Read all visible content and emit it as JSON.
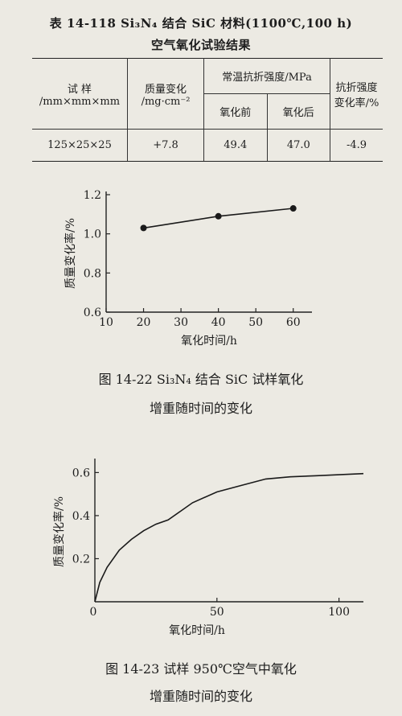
{
  "table": {
    "title_line1": "表 14-118   Si₃N₄ 结合 SiC 材料(1100℃,100 h)",
    "title_line2": "空气氧化试验结果",
    "headers": {
      "sample": "试 样",
      "sample_unit": "/mm×mm×mm",
      "mass": "质量变化",
      "mass_unit": "/mg·cm⁻²",
      "strength": "常温抗折强度/MPa",
      "before": "氧化前",
      "after": "氧化后",
      "rate": "抗折强度",
      "rate_unit": "变化率/%"
    },
    "row": {
      "sample": "125×25×25",
      "mass": "+7.8",
      "before": "49.4",
      "after": "47.0",
      "rate": "-4.9"
    }
  },
  "fig1": {
    "caption_line1": "图 14-22   Si₃N₄ 结合 SiC 试样氧化",
    "caption_line2": "增重随时间的变化"
  },
  "fig2": {
    "caption_line1": "图 14-23   试样 950℃空气中氧化",
    "caption_line2": "增重随时间的变化"
  },
  "chart_data": [
    {
      "type": "line",
      "xlabel": "氧化时间/h",
      "ylabel": "质量变化率/%",
      "xlim": [
        10,
        65
      ],
      "ylim": [
        0.6,
        1.2
      ],
      "xticks": [
        10,
        20,
        30,
        40,
        50,
        60
      ],
      "yticks": [
        0.6,
        0.8,
        1.0,
        1.2
      ],
      "x": [
        20,
        40,
        60
      ],
      "y": [
        1.03,
        1.09,
        1.13
      ],
      "markers": true
    },
    {
      "type": "line",
      "xlabel": "氧化时间/h",
      "ylabel": "质量变化率/%",
      "xlim": [
        0,
        110
      ],
      "ylim": [
        0,
        0.65
      ],
      "xticks": [
        0,
        50,
        100
      ],
      "yticks": [
        0.2,
        0.4,
        0.6
      ],
      "origin_label": "0",
      "x": [
        0,
        2,
        5,
        10,
        15,
        20,
        25,
        30,
        35,
        40,
        50,
        60,
        70,
        80,
        90,
        100,
        110
      ],
      "y": [
        0,
        0.09,
        0.16,
        0.24,
        0.29,
        0.33,
        0.36,
        0.38,
        0.42,
        0.46,
        0.51,
        0.54,
        0.57,
        0.58,
        0.585,
        0.59,
        0.595
      ],
      "markers": false
    }
  ]
}
